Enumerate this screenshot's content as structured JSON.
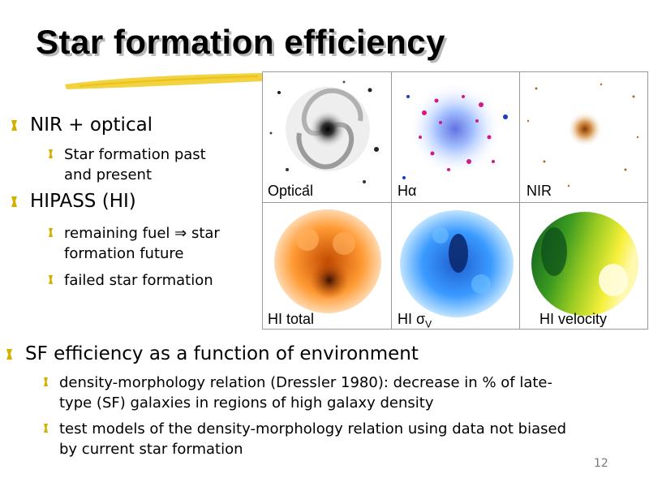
{
  "slide": {
    "title": "Star formation efficiency",
    "page_number": "12"
  },
  "bullets_top": [
    {
      "text": "NIR + optical",
      "sub": [
        "Star formation past",
        "and present"
      ]
    },
    {
      "text": "HIPASS (HI)",
      "sub": [
        "remaining fuel ⇒ star",
        "formation future",
        "failed star formation"
      ]
    }
  ],
  "panels": {
    "optical": "Optical",
    "halpha_h": "H",
    "halpha_sym": "α",
    "nir": "NIR",
    "hi_total": "HI total",
    "hi_sigma_h": "HI ",
    "hi_sigma_sym": "σ",
    "hi_sigma_sub": "V",
    "hi_velocity": "HI velocity"
  },
  "bullets_bottom": {
    "main": "SF efficiency as a function of environment",
    "sub1_line1": "density-morphology relation (Dressler 1980): decrease in % of late-",
    "sub1_line2": "type (SF) galaxies in regions of high galaxy density",
    "sub2_line1": "test models of the density-morphology relation using data not biased",
    "sub2_line2": "by current star formation"
  },
  "colors": {
    "bullet_mark": "#d4b000",
    "swoosh": "#f2cd2a",
    "hi_total_core": "#3a0f00",
    "hi_total_outer": "#ff9a33",
    "hi_sigma_core": "#0b2a70",
    "hi_sigma_outer": "#6fc2ff",
    "hi_velocity_green": "#0d5a22",
    "hi_velocity_yellow": "#fff8b0"
  }
}
